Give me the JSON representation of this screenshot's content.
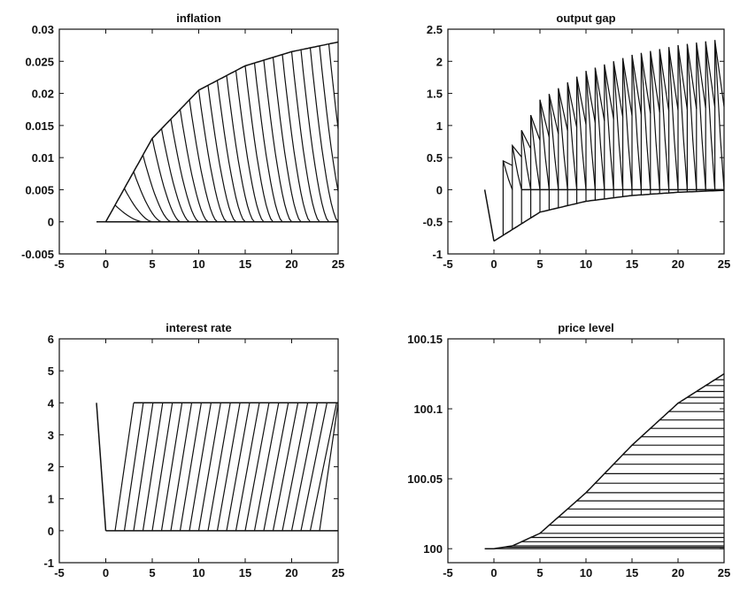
{
  "chart_data": [
    {
      "type": "line",
      "title": "inflation",
      "xlim": [
        -5,
        25
      ],
      "ylim": [
        -0.005,
        0.03
      ],
      "xticks": [
        "-5",
        "0",
        "5",
        "10",
        "15",
        "20",
        "25"
      ],
      "yticks": [
        "-0.005",
        "0",
        "0.005",
        "0.01",
        "0.015",
        "0.02",
        "0.025",
        "0.03"
      ],
      "xtick_values": [
        -5,
        0,
        5,
        10,
        15,
        20,
        25
      ],
      "ytick_values": [
        -0.005,
        0,
        0.005,
        0.01,
        0.015,
        0.02,
        0.025,
        0.03
      ],
      "grid": false,
      "envelope": {
        "x": [
          0,
          5,
          10,
          15,
          20,
          25
        ],
        "y": [
          0,
          0.013,
          0.0205,
          0.0243,
          0.0265,
          0.028
        ]
      },
      "fan": {
        "count": 24,
        "first_start": 1,
        "step": 1,
        "decay_periods": 3,
        "baseline": 0
      },
      "pre_period": {
        "x": [
          -1,
          0
        ],
        "y": [
          0,
          0
        ]
      }
    },
    {
      "type": "line",
      "title": "output gap",
      "xlim": [
        -5,
        25
      ],
      "ylim": [
        -1,
        2.5
      ],
      "xticks": [
        "-5",
        "0",
        "5",
        "10",
        "15",
        "20",
        "25"
      ],
      "yticks": [
        "-1",
        "-0.5",
        "0",
        "0.5",
        "1",
        "1.5",
        "2",
        "2.5"
      ],
      "xtick_values": [
        -5,
        0,
        5,
        10,
        15,
        20,
        25
      ],
      "ytick_values": [
        -1,
        -0.5,
        0,
        0.5,
        1,
        1.5,
        2,
        2.5
      ],
      "grid": false,
      "lower_envelope": {
        "x": [
          0,
          5,
          10,
          15,
          20,
          25
        ],
        "y": [
          -0.8,
          -0.35,
          -0.18,
          -0.09,
          -0.04,
          -0.01
        ]
      },
      "upper_envelope": {
        "x": [
          1,
          5,
          10,
          15,
          20,
          25
        ],
        "y": [
          0.45,
          1.4,
          1.85,
          2.1,
          2.25,
          2.35
        ]
      },
      "start": {
        "x": -1,
        "y": 0
      }
    },
    {
      "type": "line",
      "title": "interest rate",
      "xlim": [
        -5,
        25
      ],
      "ylim": [
        -1,
        6
      ],
      "xticks": [
        "-5",
        "0",
        "5",
        "10",
        "15",
        "20",
        "25"
      ],
      "yticks": [
        "-1",
        "0",
        "1",
        "2",
        "3",
        "4",
        "5",
        "6"
      ],
      "xtick_values": [
        -5,
        0,
        5,
        10,
        15,
        20,
        25
      ],
      "ytick_values": [
        -1,
        0,
        1,
        2,
        3,
        4,
        5,
        6
      ],
      "grid": false,
      "low_level": 0,
      "high_level": 4,
      "initial": {
        "x": [
          -1,
          0
        ],
        "y": [
          4,
          0
        ]
      },
      "fan": {
        "count": 23,
        "first_start": 1,
        "step": 1,
        "rise_periods": 2
      }
    },
    {
      "type": "line",
      "title": "price level",
      "xlim": [
        -5,
        25
      ],
      "ylim": [
        99.99,
        100.15
      ],
      "xticks": [
        "-5",
        "0",
        "5",
        "10",
        "15",
        "20",
        "25"
      ],
      "yticks": [
        "100",
        "100.05",
        "100.1",
        "100.15"
      ],
      "xtick_values": [
        -5,
        0,
        5,
        10,
        15,
        20,
        25
      ],
      "ytick_values": [
        100,
        100.05,
        100.1,
        100.15
      ],
      "grid": false,
      "envelope": {
        "x": [
          -1,
          0,
          2,
          5,
          10,
          15,
          20,
          25
        ],
        "y": [
          100,
          100,
          100.002,
          100.011,
          100.04,
          100.074,
          100.104,
          100.125
        ]
      },
      "fan": {
        "count": 25,
        "first_start": 0,
        "step": 1
      }
    }
  ]
}
